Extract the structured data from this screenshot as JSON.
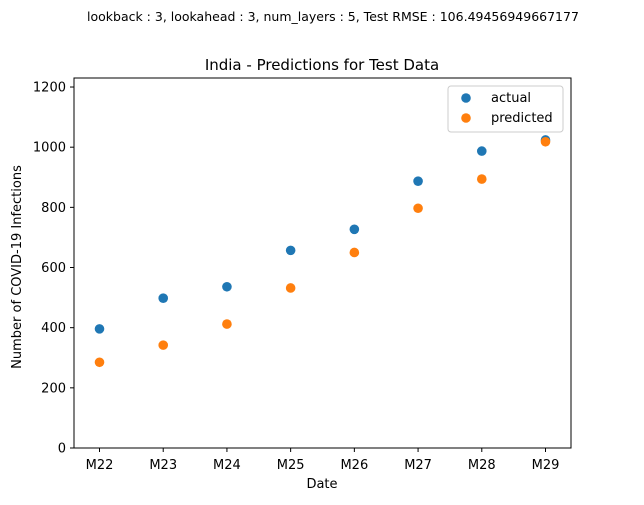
{
  "chart_data": {
    "type": "scatter",
    "suptitle": "lookback : 3, lookahead : 3, num_layers : 5, Test RMSE : 106.49456949667177",
    "title": "India - Predictions for Test Data",
    "xlabel": "Date",
    "ylabel": "Number of COVID-19 Infections",
    "categories": [
      "M22",
      "M23",
      "M24",
      "M25",
      "M26",
      "M27",
      "M28",
      "M29"
    ],
    "ylim": [
      0,
      1230
    ],
    "yticks": [
      0,
      200,
      400,
      600,
      800,
      1000,
      1200
    ],
    "grid": false,
    "legend_position": "top-right",
    "series": [
      {
        "name": "actual",
        "color": "#1f77b4",
        "values": [
          396,
          498,
          536,
          657,
          727,
          887,
          987,
          1024
        ]
      },
      {
        "name": "predicted",
        "color": "#ff7f0e",
        "values": [
          285,
          342,
          412,
          532,
          650,
          797,
          894,
          1018
        ]
      }
    ]
  }
}
